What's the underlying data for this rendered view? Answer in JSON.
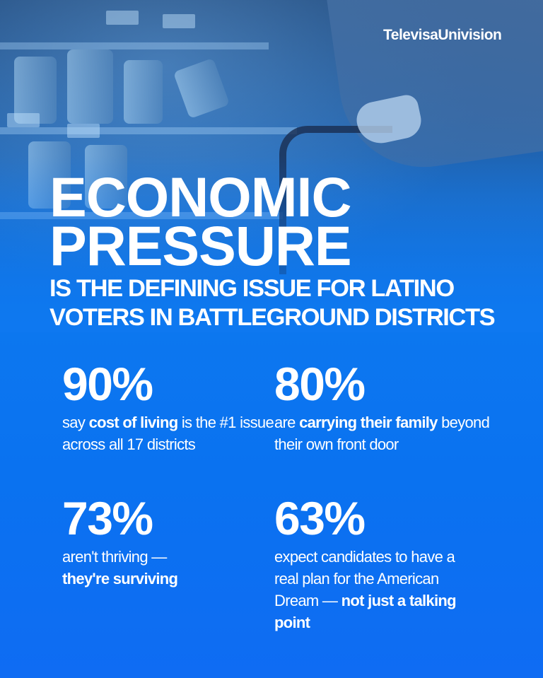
{
  "brand": {
    "logo_text": "TelevisaUnivision"
  },
  "headline": {
    "line1": "ECONOMIC",
    "line2": "PRESSURE"
  },
  "subhead": {
    "line1": "IS THE DEFINING ISSUE FOR LATINO",
    "line2": "VOTERS IN BATTLEGROUND DISTRICTS"
  },
  "stats": [
    {
      "value": "90%",
      "text_pre": "say ",
      "text_bold": "cost of living",
      "text_post": " is the #1 issue across all 17 districts"
    },
    {
      "value": "80%",
      "text_pre": "are ",
      "text_bold": "carrying their family",
      "text_post": " beyond their own front door"
    },
    {
      "value": "73%",
      "text_pre": "aren't thriving — ",
      "text_bold": "they're surviving",
      "text_post": ""
    },
    {
      "value": "63%",
      "text_pre": "expect candidates to have a real plan for the American Dream — ",
      "text_bold": "not just a talking point",
      "text_post": ""
    }
  ],
  "colors": {
    "background": "#0a72f0",
    "text": "#ffffff"
  }
}
